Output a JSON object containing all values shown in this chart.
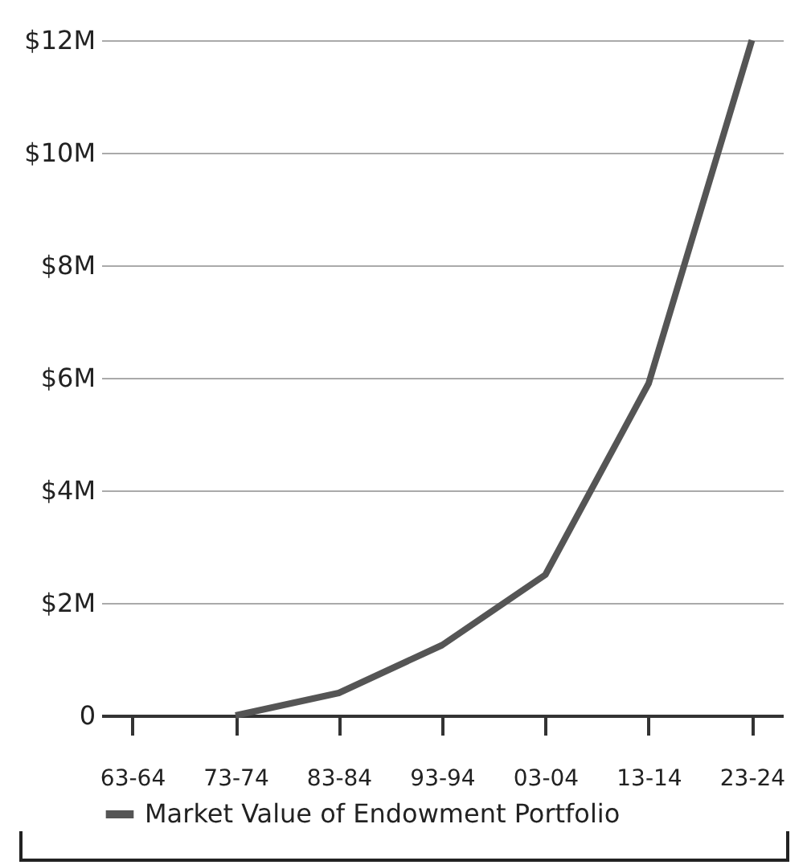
{
  "chart_data": {
    "type": "line",
    "categories": [
      "63-64",
      "73-74",
      "83-84",
      "93-94",
      "03-04",
      "13-14",
      "23-24"
    ],
    "series": [
      {
        "name": "Market Value of Endowment Portfolio",
        "color": "#555555",
        "values": [
          null,
          0,
          400000,
          1250000,
          2500000,
          5900000,
          12000000
        ]
      }
    ],
    "ylim": [
      0,
      12000000
    ],
    "yticks": [
      0,
      {
        "value": 2000000,
        "label": "$2M"
      },
      {
        "value": 4000000,
        "label": "$4M"
      },
      {
        "value": 6000000,
        "label": "$6M"
      },
      {
        "value": 8000000,
        "label": "$8M"
      },
      {
        "value": 10000000,
        "label": "$10M"
      },
      {
        "value": 12000000,
        "label": "$12M"
      }
    ],
    "grid": "y",
    "legend": "bottom",
    "marker": "none",
    "line_style": "solid"
  }
}
